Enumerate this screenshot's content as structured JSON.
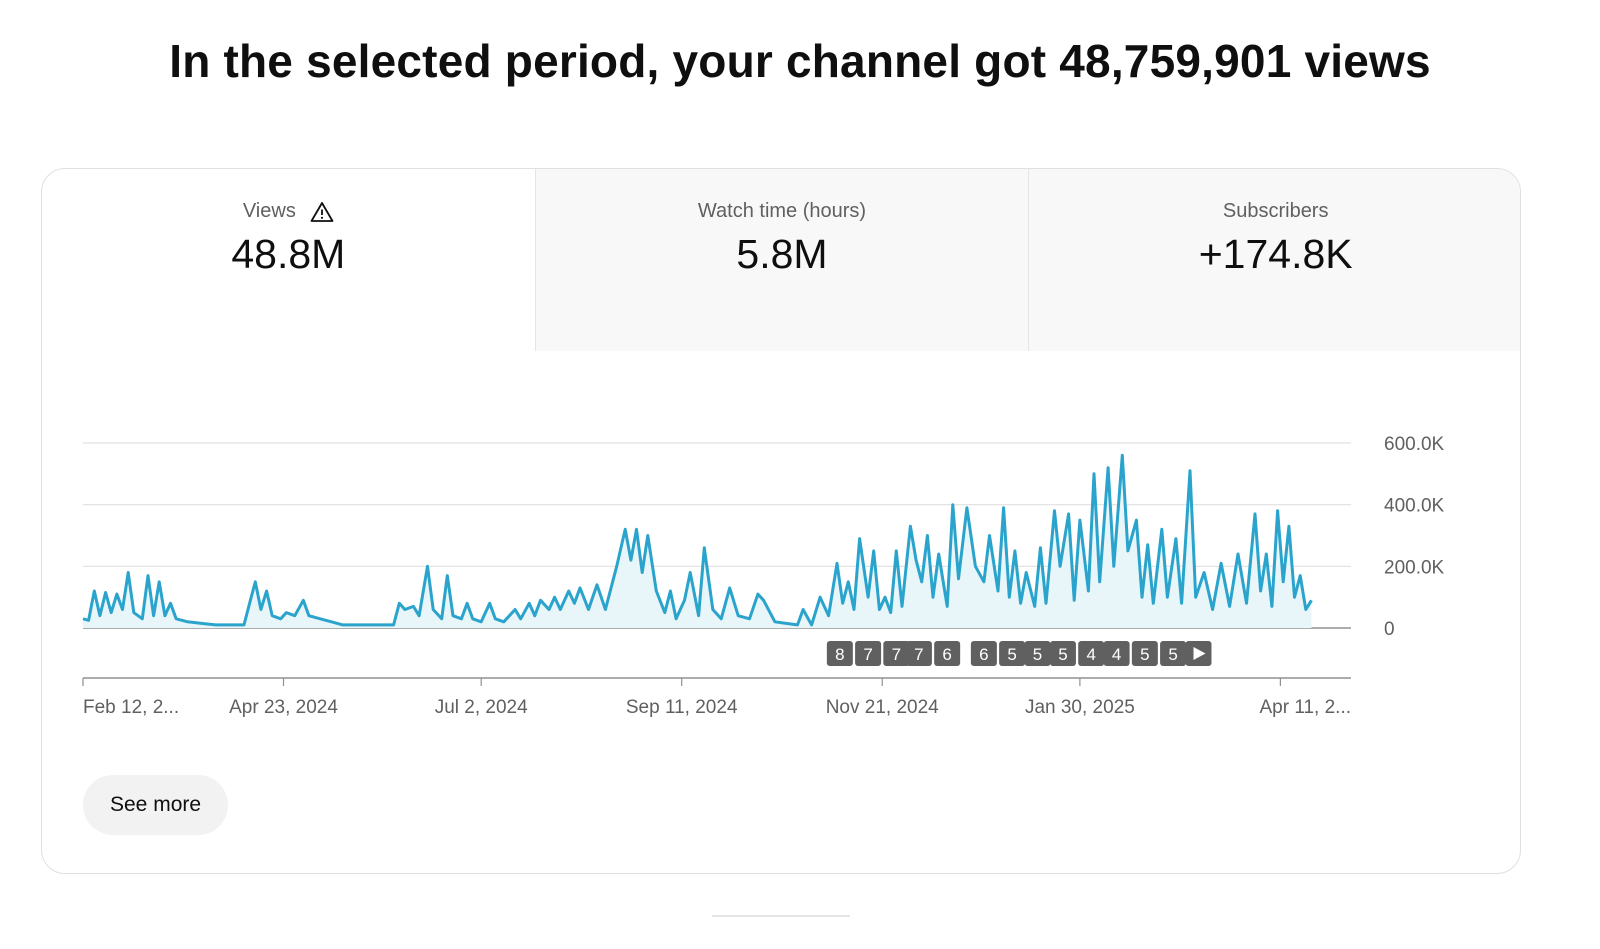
{
  "headline": "In the selected period, your channel got 48,759,901 views",
  "tabs": [
    {
      "label": "Views",
      "value": "48.8M",
      "icon": "warning-icon",
      "selected": true
    },
    {
      "label": "Watch time (hours)",
      "value": "5.8M",
      "selected": false
    },
    {
      "label": "Subscribers",
      "value": "+174.8K",
      "selected": false
    }
  ],
  "see_more_label": "See more",
  "colors": {
    "line": "#2aa4cc",
    "fill": "#e8f5f9",
    "badge": "#606060"
  },
  "chart_data": {
    "type": "area",
    "title": "",
    "xlabel": "",
    "ylabel": "",
    "y_axis_position": "right",
    "grid": true,
    "ylim": [
      0,
      600000
    ],
    "y_ticks": [
      {
        "value": 0,
        "label": "0"
      },
      {
        "value": 200000,
        "label": "200.0K"
      },
      {
        "value": 400000,
        "label": "400.0K"
      },
      {
        "value": 600000,
        "label": "600.0K"
      }
    ],
    "x_start": "2024-02-12",
    "x_end": "2025-05-06",
    "x_ticks": [
      {
        "date": "2024-02-12",
        "label": "Feb 12, 2..."
      },
      {
        "date": "2024-04-23",
        "label": "Apr 23, 2024"
      },
      {
        "date": "2024-07-02",
        "label": "Jul 2, 2024"
      },
      {
        "date": "2024-09-11",
        "label": "Sep 11, 2024"
      },
      {
        "date": "2024-11-21",
        "label": "Nov 21, 2024"
      },
      {
        "date": "2025-01-30",
        "label": "Jan 30, 2025"
      },
      {
        "date": "2025-04-11",
        "label": "Apr 11, 2..."
      }
    ],
    "series": [
      {
        "points": [
          [
            "2024-02-12",
            30000
          ],
          [
            "2024-02-14",
            25000
          ],
          [
            "2024-02-16",
            120000
          ],
          [
            "2024-02-18",
            40000
          ],
          [
            "2024-02-20",
            115000
          ],
          [
            "2024-02-22",
            50000
          ],
          [
            "2024-02-24",
            110000
          ],
          [
            "2024-02-26",
            60000
          ],
          [
            "2024-02-28",
            180000
          ],
          [
            "2024-03-01",
            50000
          ],
          [
            "2024-03-04",
            30000
          ],
          [
            "2024-03-06",
            170000
          ],
          [
            "2024-03-08",
            40000
          ],
          [
            "2024-03-10",
            150000
          ],
          [
            "2024-03-12",
            40000
          ],
          [
            "2024-03-14",
            80000
          ],
          [
            "2024-03-16",
            30000
          ],
          [
            "2024-03-20",
            20000
          ],
          [
            "2024-03-25",
            15000
          ],
          [
            "2024-03-30",
            10000
          ],
          [
            "2024-04-05",
            10000
          ],
          [
            "2024-04-09",
            10000
          ],
          [
            "2024-04-11",
            80000
          ],
          [
            "2024-04-13",
            150000
          ],
          [
            "2024-04-15",
            60000
          ],
          [
            "2024-04-17",
            120000
          ],
          [
            "2024-04-19",
            40000
          ],
          [
            "2024-04-22",
            30000
          ],
          [
            "2024-04-24",
            50000
          ],
          [
            "2024-04-27",
            40000
          ],
          [
            "2024-04-30",
            90000
          ],
          [
            "2024-05-02",
            40000
          ],
          [
            "2024-05-06",
            30000
          ],
          [
            "2024-05-10",
            20000
          ],
          [
            "2024-05-14",
            10000
          ],
          [
            "2024-05-20",
            10000
          ],
          [
            "2024-05-28",
            10000
          ],
          [
            "2024-06-01",
            10000
          ],
          [
            "2024-06-03",
            80000
          ],
          [
            "2024-06-05",
            60000
          ],
          [
            "2024-06-08",
            70000
          ],
          [
            "2024-06-10",
            40000
          ],
          [
            "2024-06-13",
            200000
          ],
          [
            "2024-06-15",
            60000
          ],
          [
            "2024-06-18",
            30000
          ],
          [
            "2024-06-20",
            170000
          ],
          [
            "2024-06-22",
            40000
          ],
          [
            "2024-06-25",
            30000
          ],
          [
            "2024-06-27",
            80000
          ],
          [
            "2024-06-29",
            30000
          ],
          [
            "2024-07-02",
            20000
          ],
          [
            "2024-07-05",
            80000
          ],
          [
            "2024-07-07",
            30000
          ],
          [
            "2024-07-10",
            20000
          ],
          [
            "2024-07-14",
            60000
          ],
          [
            "2024-07-16",
            30000
          ],
          [
            "2024-07-19",
            80000
          ],
          [
            "2024-07-21",
            40000
          ],
          [
            "2024-07-23",
            90000
          ],
          [
            "2024-07-26",
            60000
          ],
          [
            "2024-07-28",
            100000
          ],
          [
            "2024-07-30",
            60000
          ],
          [
            "2024-08-02",
            120000
          ],
          [
            "2024-08-04",
            80000
          ],
          [
            "2024-08-06",
            130000
          ],
          [
            "2024-08-09",
            60000
          ],
          [
            "2024-08-12",
            140000
          ],
          [
            "2024-08-15",
            60000
          ],
          [
            "2024-08-19",
            200000
          ],
          [
            "2024-08-22",
            320000
          ],
          [
            "2024-08-24",
            220000
          ],
          [
            "2024-08-26",
            320000
          ],
          [
            "2024-08-28",
            180000
          ],
          [
            "2024-08-30",
            300000
          ],
          [
            "2024-09-02",
            120000
          ],
          [
            "2024-09-05",
            50000
          ],
          [
            "2024-09-07",
            120000
          ],
          [
            "2024-09-09",
            30000
          ],
          [
            "2024-09-12",
            90000
          ],
          [
            "2024-09-14",
            180000
          ],
          [
            "2024-09-17",
            40000
          ],
          [
            "2024-09-19",
            260000
          ],
          [
            "2024-09-22",
            60000
          ],
          [
            "2024-09-25",
            30000
          ],
          [
            "2024-09-28",
            130000
          ],
          [
            "2024-10-01",
            40000
          ],
          [
            "2024-10-05",
            30000
          ],
          [
            "2024-10-08",
            110000
          ],
          [
            "2024-10-10",
            90000
          ],
          [
            "2024-10-14",
            20000
          ],
          [
            "2024-10-18",
            15000
          ],
          [
            "2024-10-22",
            10000
          ],
          [
            "2024-10-24",
            60000
          ],
          [
            "2024-10-27",
            10000
          ],
          [
            "2024-10-30",
            100000
          ],
          [
            "2024-11-02",
            40000
          ],
          [
            "2024-11-05",
            210000
          ],
          [
            "2024-11-07",
            80000
          ],
          [
            "2024-11-09",
            150000
          ],
          [
            "2024-11-11",
            60000
          ],
          [
            "2024-11-13",
            290000
          ],
          [
            "2024-11-16",
            100000
          ],
          [
            "2024-11-18",
            250000
          ],
          [
            "2024-11-20",
            60000
          ],
          [
            "2024-11-22",
            100000
          ],
          [
            "2024-11-24",
            50000
          ],
          [
            "2024-11-26",
            250000
          ],
          [
            "2024-11-28",
            70000
          ],
          [
            "2024-12-01",
            330000
          ],
          [
            "2024-12-03",
            220000
          ],
          [
            "2024-12-05",
            150000
          ],
          [
            "2024-12-07",
            300000
          ],
          [
            "2024-12-09",
            100000
          ],
          [
            "2024-12-11",
            240000
          ],
          [
            "2024-12-14",
            70000
          ],
          [
            "2024-12-16",
            400000
          ],
          [
            "2024-12-18",
            160000
          ],
          [
            "2024-12-21",
            390000
          ],
          [
            "2024-12-24",
            200000
          ],
          [
            "2024-12-27",
            150000
          ],
          [
            "2024-12-29",
            300000
          ],
          [
            "2025-01-01",
            120000
          ],
          [
            "2025-01-03",
            390000
          ],
          [
            "2025-01-05",
            100000
          ],
          [
            "2025-01-07",
            250000
          ],
          [
            "2025-01-09",
            80000
          ],
          [
            "2025-01-11",
            180000
          ],
          [
            "2025-01-14",
            70000
          ],
          [
            "2025-01-16",
            260000
          ],
          [
            "2025-01-18",
            80000
          ],
          [
            "2025-01-21",
            380000
          ],
          [
            "2025-01-23",
            200000
          ],
          [
            "2025-01-26",
            370000
          ],
          [
            "2025-01-28",
            90000
          ],
          [
            "2025-01-30",
            350000
          ],
          [
            "2025-02-02",
            120000
          ],
          [
            "2025-02-04",
            500000
          ],
          [
            "2025-02-06",
            150000
          ],
          [
            "2025-02-09",
            520000
          ],
          [
            "2025-02-11",
            200000
          ],
          [
            "2025-02-14",
            560000
          ],
          [
            "2025-02-16",
            250000
          ],
          [
            "2025-02-19",
            350000
          ],
          [
            "2025-02-21",
            100000
          ],
          [
            "2025-02-23",
            270000
          ],
          [
            "2025-02-25",
            80000
          ],
          [
            "2025-02-28",
            320000
          ],
          [
            "2025-03-02",
            100000
          ],
          [
            "2025-03-05",
            290000
          ],
          [
            "2025-03-07",
            80000
          ],
          [
            "2025-03-10",
            510000
          ],
          [
            "2025-03-12",
            100000
          ],
          [
            "2025-03-15",
            180000
          ],
          [
            "2025-03-18",
            60000
          ],
          [
            "2025-03-21",
            210000
          ],
          [
            "2025-03-24",
            70000
          ],
          [
            "2025-03-27",
            240000
          ],
          [
            "2025-03-30",
            80000
          ],
          [
            "2025-04-02",
            370000
          ],
          [
            "2025-04-04",
            120000
          ],
          [
            "2025-04-06",
            240000
          ],
          [
            "2025-04-08",
            70000
          ],
          [
            "2025-04-10",
            380000
          ],
          [
            "2025-04-12",
            150000
          ],
          [
            "2025-04-14",
            330000
          ],
          [
            "2025-04-16",
            100000
          ],
          [
            "2025-04-18",
            170000
          ],
          [
            "2025-04-20",
            60000
          ],
          [
            "2025-04-22",
            90000
          ]
        ]
      }
    ],
    "annotations": [
      {
        "date": "2024-11-06",
        "label": "8"
      },
      {
        "date": "2024-11-16",
        "label": "7"
      },
      {
        "date": "2024-11-26",
        "label": "7"
      },
      {
        "date": "2024-12-04",
        "label": "7"
      },
      {
        "date": "2024-12-14",
        "label": "6"
      },
      {
        "date": "2024-12-27",
        "label": "6"
      },
      {
        "date": "2025-01-06",
        "label": "5"
      },
      {
        "date": "2025-01-15",
        "label": "5"
      },
      {
        "date": "2025-01-24",
        "label": "5"
      },
      {
        "date": "2025-02-03",
        "label": "4"
      },
      {
        "date": "2025-02-12",
        "label": "4"
      },
      {
        "date": "2025-02-22",
        "label": "5"
      },
      {
        "date": "2025-03-04",
        "label": "5"
      },
      {
        "date": "2025-03-13",
        "label": "play-icon"
      }
    ]
  }
}
